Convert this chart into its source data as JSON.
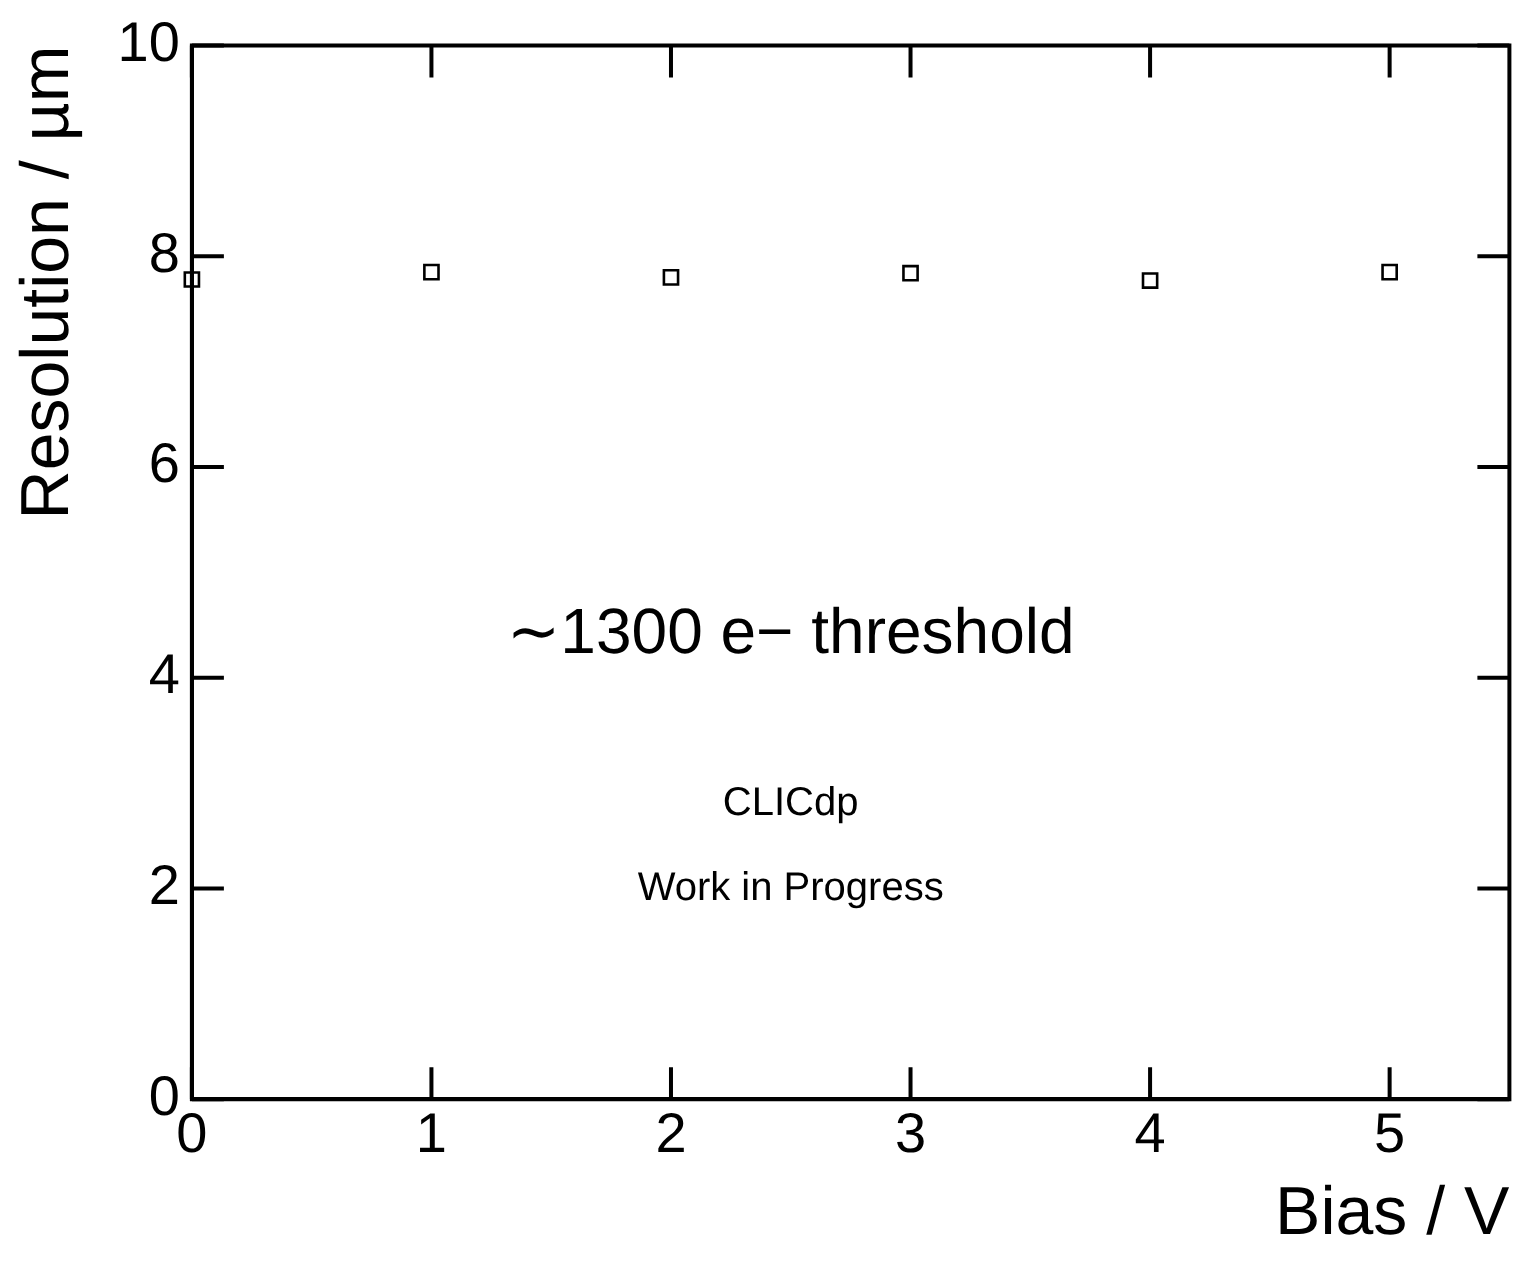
{
  "chart_data": {
    "type": "scatter",
    "xlabel": "Bias / V",
    "ylabel": "Resolution / µm",
    "x": [
      0,
      1,
      2,
      3,
      4,
      5
    ],
    "series": [
      {
        "color": "#000000",
        "values": [
          7.78,
          7.85,
          7.8,
          7.84,
          7.77,
          7.85
        ]
      }
    ],
    "xlim": [
      0,
      5.5
    ],
    "xticks": [
      0,
      1,
      2,
      3,
      4,
      5
    ],
    "ylim": [
      0,
      10
    ],
    "yticks": [
      0,
      2,
      4,
      6,
      8,
      10
    ],
    "marker": "square",
    "grid": false,
    "legend": false,
    "annotations": [
      "∼1300 e− threshold",
      "CLICdp",
      "Work in Progress"
    ]
  }
}
